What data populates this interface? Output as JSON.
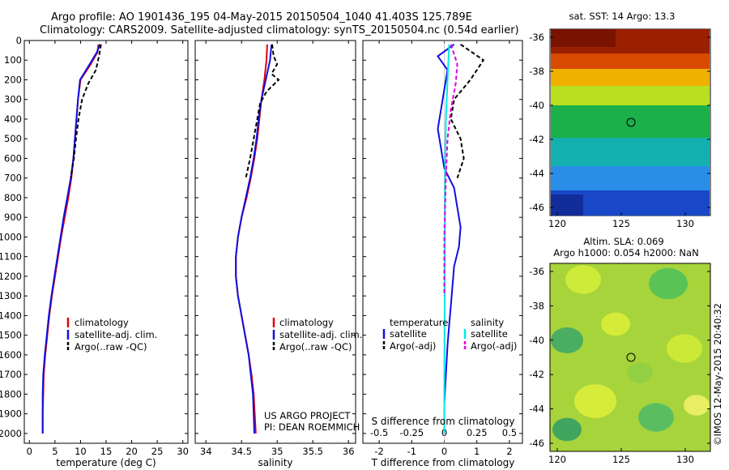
{
  "header": {
    "line1": "Argo profile: AO 1901436_195 04-May-2015 20150504_1040 41.403S 125.789E",
    "line2": "Climatology: CARS2009. Satellite-adjusted climatology: synTS_20150504.nc (0.54d earlier)"
  },
  "colors": {
    "climatology": "#e00000",
    "satellite": "#1010e0",
    "argo": "#000000",
    "sat_salinity": "#00e8e8",
    "argo_salinity_diff": "#e000e0"
  },
  "panels": {
    "temperature": {
      "xlabel": "temperature (deg C)",
      "legend": [
        "climatology",
        "satellite-adj. clim.",
        "Argo(..raw -QC)"
      ]
    },
    "salinity": {
      "xlabel": "salinity",
      "legend": [
        "climatology",
        "satellite-adj. clim.",
        "Argo(..raw -QC)"
      ],
      "credit1": "US ARGO PROJECT",
      "credit2": "PI: DEAN ROEMMICH"
    },
    "difference": {
      "xlabel": "T difference from climatology",
      "top_label": "S difference from climatology",
      "legend_temp_title": "temperature",
      "legend_sal_title": "salinity",
      "legend_temp": [
        "satellite",
        "Argo(-adj)"
      ],
      "legend_sal": [
        "satellite",
        "Argo(-adj)"
      ]
    },
    "sst_map": {
      "title": "sat. SST: 14 Argo: 13.3"
    },
    "sla_map": {
      "title1": "Altim. SLA: 0.069",
      "title2": "Argo h1000: 0.054 h2000: NaN"
    }
  },
  "timestamp": "©IMOS 12-May-2015 20:40:32",
  "chart_data": [
    {
      "type": "line",
      "ylabel": "",
      "xlabel": "temperature (deg C)",
      "xlim": [
        -1,
        31
      ],
      "ylim": [
        2050,
        0
      ],
      "y_reversed": true,
      "xticks": [
        0,
        5,
        10,
        15,
        20,
        25,
        30
      ],
      "yticks": [
        0,
        100,
        200,
        300,
        400,
        500,
        600,
        700,
        800,
        900,
        1000,
        1100,
        1200,
        1300,
        1400,
        1500,
        1600,
        1700,
        1800,
        1900,
        2000
      ],
      "series": [
        {
          "name": "climatology",
          "x": [
            13.5,
            13.3,
            12.0,
            10.0,
            9.5,
            9.2,
            8.9,
            8.6,
            8.2,
            7.6,
            6.9,
            6.2,
            5.6,
            5.0,
            4.4,
            3.9,
            3.5,
            3.1,
            2.8,
            2.7,
            2.6,
            2.6
          ],
          "y": [
            20,
            60,
            120,
            200,
            300,
            400,
            500,
            600,
            700,
            800,
            900,
            1000,
            1100,
            1200,
            1300,
            1400,
            1500,
            1600,
            1700,
            1800,
            1900,
            2000
          ]
        },
        {
          "name": "satellite-adj. clim.",
          "x": [
            13.8,
            13.2,
            11.8,
            9.9,
            9.5,
            9.2,
            8.9,
            8.6,
            8.1,
            7.4,
            6.7,
            6.1,
            5.5,
            4.9,
            4.3,
            3.8,
            3.4,
            3.0,
            2.7,
            2.6,
            2.6,
            2.6
          ],
          "y": [
            20,
            60,
            120,
            200,
            300,
            400,
            500,
            600,
            700,
            800,
            900,
            1000,
            1100,
            1200,
            1300,
            1400,
            1500,
            1600,
            1700,
            1800,
            1900,
            2000
          ]
        },
        {
          "name": "Argo(..raw -QC)",
          "x": [
            14.0,
            13.6,
            13.0,
            11.5,
            10.3,
            9.6,
            9.1,
            8.7,
            8.1
          ],
          "y": [
            20,
            80,
            150,
            220,
            300,
            400,
            500,
            600,
            700
          ]
        }
      ]
    },
    {
      "type": "line",
      "xlabel": "salinity",
      "xlim": [
        33.85,
        36.1
      ],
      "ylim": [
        2050,
        0
      ],
      "y_reversed": true,
      "xticks": [
        34,
        34.5,
        35,
        35.5,
        36
      ],
      "series": [
        {
          "name": "climatology",
          "x": [
            34.86,
            34.85,
            34.82,
            34.78,
            34.75,
            34.72,
            34.68,
            34.63,
            34.57,
            34.5,
            34.45,
            34.42,
            34.42,
            34.45,
            34.5,
            34.55,
            34.6,
            34.64,
            34.67,
            34.7
          ],
          "y": [
            20,
            100,
            200,
            300,
            400,
            500,
            600,
            700,
            800,
            900,
            1000,
            1100,
            1200,
            1300,
            1400,
            1500,
            1600,
            1700,
            1800,
            2000
          ]
        },
        {
          "name": "satellite-adj. clim.",
          "x": [
            34.92,
            34.9,
            34.84,
            34.78,
            34.74,
            34.71,
            34.67,
            34.62,
            34.56,
            34.5,
            34.45,
            34.42,
            34.42,
            34.45,
            34.5,
            34.55,
            34.6,
            34.63,
            34.66,
            34.68
          ],
          "y": [
            20,
            100,
            200,
            300,
            400,
            500,
            600,
            700,
            800,
            900,
            1000,
            1100,
            1200,
            1300,
            1400,
            1500,
            1600,
            1700,
            1800,
            2000
          ]
        },
        {
          "name": "Argo(..raw -QC)",
          "x": [
            34.93,
            34.95,
            35.0,
            34.92,
            35.02,
            34.85,
            34.76,
            34.72,
            34.67,
            34.62,
            34.56
          ],
          "y": [
            20,
            80,
            120,
            170,
            200,
            260,
            320,
            400,
            500,
            600,
            700
          ]
        }
      ]
    },
    {
      "type": "line",
      "xlabel": "T difference from climatology",
      "xlim": [
        -2.5,
        2.4
      ],
      "ylim": [
        2050,
        0
      ],
      "y_reversed": true,
      "xticks": [
        -2,
        -1,
        0,
        1,
        2
      ],
      "secondary_xlabel": "S difference from climatology",
      "secondary_xticks": [
        -0.5,
        -0.25,
        0,
        0.25,
        0.5
      ],
      "series": [
        {
          "name": "temperature satellite",
          "x": [
            0.3,
            -0.2,
            0.1,
            0.0,
            -0.1,
            -0.2,
            -0.1,
            0.0,
            0.3,
            0.4,
            0.5,
            0.45,
            0.3,
            0.25,
            0.2,
            0.15,
            0.1,
            0.05,
            0.0,
            0.0
          ],
          "y": [
            20,
            80,
            150,
            250,
            350,
            450,
            550,
            650,
            750,
            850,
            950,
            1050,
            1150,
            1250,
            1350,
            1450,
            1550,
            1700,
            1850,
            2000
          ]
        },
        {
          "name": "temperature Argo(-adj)",
          "x": [
            0.5,
            1.2,
            0.8,
            0.3,
            0.2,
            0.5,
            0.6,
            0.4
          ],
          "y": [
            20,
            100,
            200,
            300,
            400,
            500,
            600,
            700
          ]
        },
        {
          "name": "salinity satellite",
          "x": [
            0.15,
            0.1,
            0.05,
            0.03,
            0.02,
            0.02,
            0.01,
            0.0,
            0.0
          ],
          "y": [
            20,
            200,
            400,
            600,
            800,
            1000,
            1400,
            1800,
            2000
          ]
        },
        {
          "name": "salinity Argo(-adj)",
          "x": [
            0.2,
            0.4,
            0.35,
            0.2,
            0.1,
            0.05,
            0.0,
            0.0
          ],
          "y": [
            20,
            120,
            220,
            350,
            500,
            700,
            1000,
            1300
          ]
        }
      ]
    }
  ]
}
